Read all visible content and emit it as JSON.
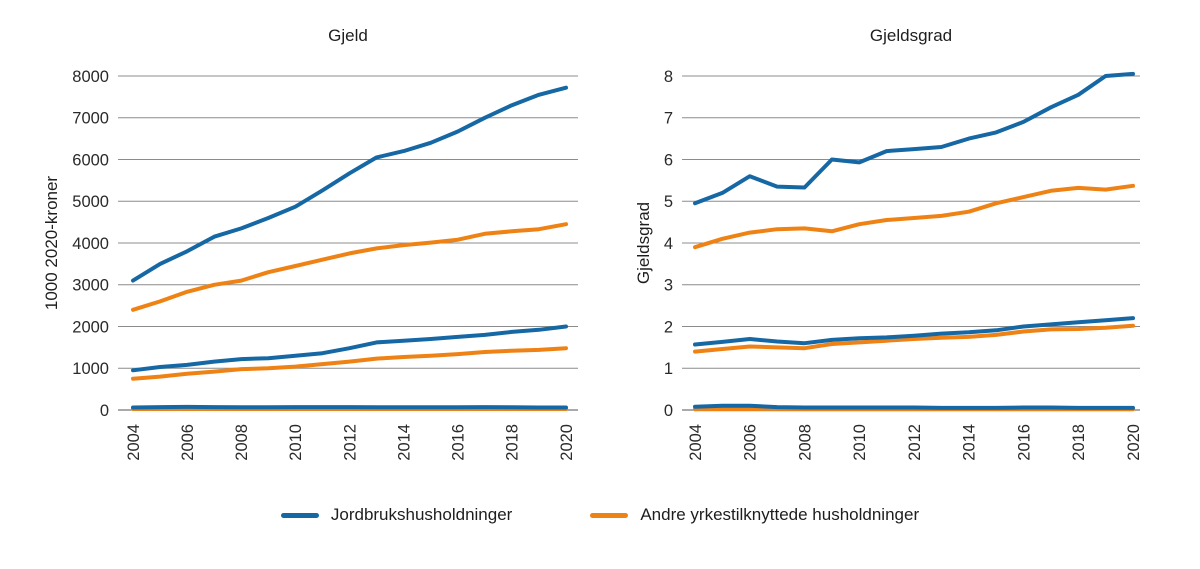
{
  "colors": {
    "blue": "#1668a5",
    "orange": "#ef8214",
    "grid": "#8c8c8c",
    "axis": "#545454",
    "text": "#2a2a2a"
  },
  "legend": {
    "items": [
      {
        "label": "Jordbrukshusholdninger",
        "color_key": "blue"
      },
      {
        "label": "Andre yrkestilknyttede husholdninger",
        "color_key": "orange"
      }
    ]
  },
  "chart_data": [
    {
      "type": "line",
      "title": "Gjeld",
      "ylabel": "1000 2020-kroner",
      "ylim": [
        0,
        8000
      ],
      "yticks": [
        0,
        1000,
        2000,
        3000,
        4000,
        5000,
        6000,
        7000,
        8000
      ],
      "x": [
        2004,
        2005,
        2006,
        2007,
        2008,
        2009,
        2010,
        2011,
        2012,
        2013,
        2014,
        2015,
        2016,
        2017,
        2018,
        2019,
        2020
      ],
      "xticks": [
        2004,
        2006,
        2008,
        2010,
        2012,
        2014,
        2016,
        2018,
        2020
      ],
      "grid": true,
      "legend_position": "bottom",
      "series": [
        {
          "legend_label": "Jordbrukshusholdninger",
          "color_key": "blue",
          "values": [
            3100,
            3500,
            3800,
            4150,
            4350,
            4600,
            4870,
            5260,
            5670,
            6050,
            6200,
            6400,
            6670,
            7000,
            7300,
            7550,
            7720
          ]
        },
        {
          "legend_label": "Andre yrkestilknyttede husholdninger",
          "color_key": "orange",
          "values": [
            2400,
            2600,
            2830,
            3000,
            3100,
            3300,
            3450,
            3600,
            3750,
            3870,
            3950,
            4010,
            4080,
            4220,
            4280,
            4330,
            4450
          ]
        },
        {
          "legend_label": "Jordbrukshusholdninger",
          "color_key": "blue",
          "values": [
            950,
            1030,
            1080,
            1160,
            1220,
            1240,
            1300,
            1360,
            1480,
            1620,
            1660,
            1700,
            1750,
            1800,
            1870,
            1920,
            2000
          ]
        },
        {
          "legend_label": "Andre yrkestilknyttede husholdninger",
          "color_key": "orange",
          "values": [
            750,
            800,
            870,
            920,
            980,
            1000,
            1040,
            1100,
            1160,
            1230,
            1270,
            1300,
            1340,
            1390,
            1420,
            1440,
            1480
          ]
        },
        {
          "legend_label": "Jordbrukshusholdninger",
          "color_key": "blue",
          "values": [
            60,
            70,
            75,
            70,
            65,
            65,
            70,
            70,
            70,
            65,
            65,
            65,
            65,
            70,
            65,
            60,
            60
          ]
        },
        {
          "legend_label": "Andre yrkestilknyttede husholdninger",
          "color_key": "orange",
          "values": [
            25,
            25,
            25,
            25,
            25,
            25,
            25,
            25,
            25,
            25,
            25,
            25,
            25,
            25,
            25,
            25,
            25
          ]
        }
      ]
    },
    {
      "type": "line",
      "title": "Gjeldsgrad",
      "ylabel": "Gjeldsgrad",
      "ylim": [
        0,
        8
      ],
      "yticks": [
        0,
        1,
        2,
        3,
        4,
        5,
        6,
        7,
        8
      ],
      "x": [
        2004,
        2005,
        2006,
        2007,
        2008,
        2009,
        2010,
        2011,
        2012,
        2013,
        2014,
        2015,
        2016,
        2017,
        2018,
        2019,
        2020
      ],
      "xticks": [
        2004,
        2006,
        2008,
        2010,
        2012,
        2014,
        2016,
        2018,
        2020
      ],
      "grid": true,
      "legend_position": "bottom",
      "series": [
        {
          "legend_label": "Jordbrukshusholdninger",
          "color_key": "blue",
          "values": [
            4.95,
            5.2,
            5.6,
            5.35,
            5.33,
            6.0,
            5.93,
            6.2,
            6.25,
            6.3,
            6.5,
            6.65,
            6.9,
            7.25,
            7.55,
            8.0,
            8.05
          ]
        },
        {
          "legend_label": "Andre yrkestilknyttede husholdninger",
          "color_key": "orange",
          "values": [
            3.9,
            4.1,
            4.25,
            4.33,
            4.35,
            4.28,
            4.45,
            4.55,
            4.6,
            4.65,
            4.75,
            4.95,
            5.1,
            5.25,
            5.32,
            5.28,
            5.37
          ]
        },
        {
          "legend_label": "Jordbrukshusholdninger",
          "color_key": "blue",
          "values": [
            1.57,
            1.63,
            1.7,
            1.64,
            1.6,
            1.68,
            1.72,
            1.74,
            1.78,
            1.83,
            1.86,
            1.91,
            2.0,
            2.05,
            2.1,
            2.15,
            2.2
          ]
        },
        {
          "legend_label": "Andre yrkestilknyttede husholdninger",
          "color_key": "orange",
          "values": [
            1.4,
            1.46,
            1.52,
            1.5,
            1.48,
            1.58,
            1.62,
            1.66,
            1.7,
            1.73,
            1.75,
            1.8,
            1.88,
            1.93,
            1.94,
            1.97,
            2.02
          ]
        },
        {
          "legend_label": "Jordbrukshusholdninger",
          "color_key": "blue",
          "values": [
            0.08,
            0.1,
            0.1,
            0.07,
            0.06,
            0.06,
            0.06,
            0.06,
            0.06,
            0.05,
            0.05,
            0.05,
            0.06,
            0.06,
            0.05,
            0.05,
            0.05
          ]
        },
        {
          "legend_label": "Andre yrkestilknyttede husholdninger",
          "color_key": "orange",
          "values": [
            0.02,
            0.02,
            0.02,
            0.02,
            0.02,
            0.02,
            0.02,
            0.02,
            0.02,
            0.02,
            0.02,
            0.02,
            0.02,
            0.02,
            0.02,
            0.02,
            0.02
          ]
        }
      ]
    }
  ]
}
